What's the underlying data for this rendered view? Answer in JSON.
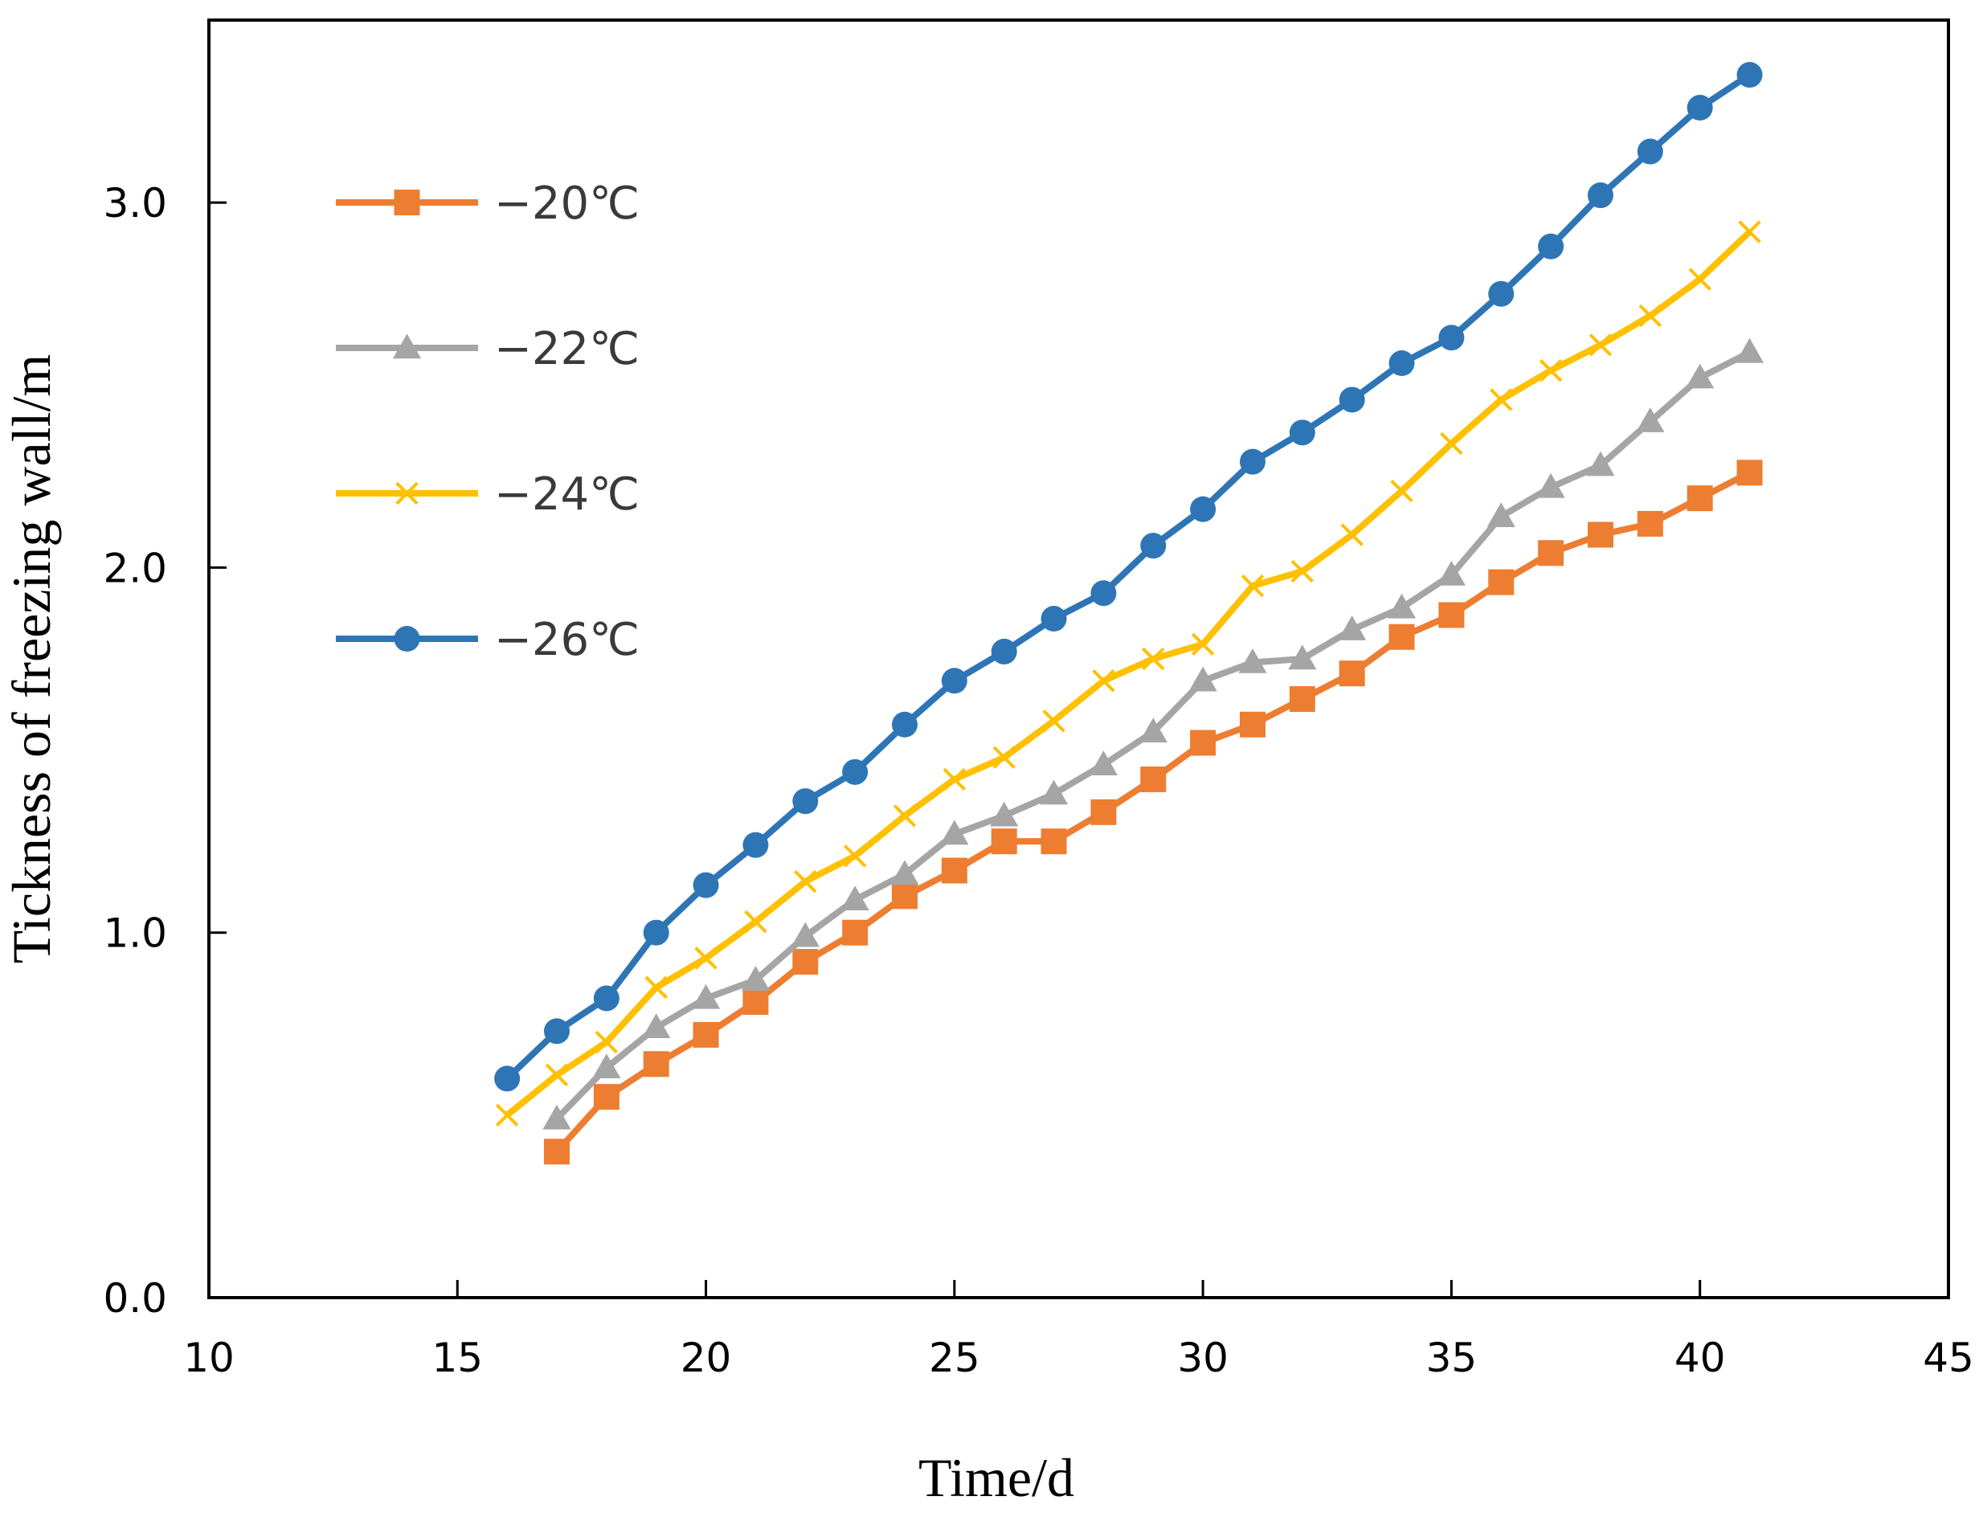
{
  "chart_data": {
    "type": "line",
    "title": "",
    "xlabel": "Time/d",
    "ylabel": "Tickness of freezing wall/m",
    "xlim": [
      10,
      45
    ],
    "ylim": [
      0,
      3.5
    ],
    "xticks": [
      10,
      15,
      20,
      25,
      30,
      35,
      40,
      45
    ],
    "yticks": [
      0.0,
      1.0,
      2.0,
      3.0
    ],
    "xtick_labels": [
      "10",
      "15",
      "20",
      "25",
      "30",
      "35",
      "40",
      "45"
    ],
    "ytick_labels": [
      "0.0",
      "1.0",
      "2.0",
      "3.0"
    ],
    "grid": false,
    "legend_position": "top-left",
    "series": [
      {
        "name": "−20℃",
        "color": "#ED7D31",
        "marker": "square",
        "x": [
          17,
          18,
          19,
          20,
          21,
          22,
          23,
          24,
          25,
          26,
          27,
          28,
          29,
          30,
          31,
          32,
          33,
          34,
          35,
          36,
          37,
          38,
          39,
          40,
          41
        ],
        "values": [
          0.4,
          0.55,
          0.64,
          0.72,
          0.81,
          0.92,
          1.0,
          1.1,
          1.17,
          1.25,
          1.25,
          1.33,
          1.42,
          1.52,
          1.57,
          1.64,
          1.71,
          1.81,
          1.87,
          1.96,
          2.04,
          2.09,
          2.12,
          2.19,
          2.26
        ]
      },
      {
        "name": "−22℃",
        "color": "#A5A5A5",
        "marker": "triangle",
        "x": [
          17,
          18,
          19,
          20,
          21,
          22,
          23,
          24,
          25,
          26,
          27,
          28,
          29,
          30,
          31,
          32,
          33,
          34,
          35,
          36,
          37,
          38,
          39,
          40,
          41
        ],
        "values": [
          0.49,
          0.63,
          0.74,
          0.82,
          0.87,
          0.99,
          1.09,
          1.16,
          1.27,
          1.32,
          1.38,
          1.46,
          1.55,
          1.69,
          1.74,
          1.75,
          1.83,
          1.89,
          1.98,
          2.14,
          2.22,
          2.28,
          2.4,
          2.52,
          2.59
        ]
      },
      {
        "name": "−24℃",
        "color": "#FFC000",
        "marker": "x",
        "x": [
          16,
          17,
          18,
          19,
          20,
          21,
          22,
          23,
          24,
          25,
          26,
          27,
          28,
          29,
          30,
          31,
          32,
          33,
          34,
          35,
          36,
          37,
          38,
          39,
          40,
          41
        ],
        "values": [
          0.5,
          0.61,
          0.7,
          0.85,
          0.93,
          1.03,
          1.14,
          1.21,
          1.32,
          1.42,
          1.48,
          1.58,
          1.69,
          1.75,
          1.79,
          1.95,
          1.99,
          2.09,
          2.21,
          2.34,
          2.46,
          2.54,
          2.61,
          2.69,
          2.79,
          2.92
        ]
      },
      {
        "name": "−26℃",
        "color": "#2E75B6",
        "marker": "circle",
        "x": [
          16,
          17,
          18,
          19,
          20,
          21,
          22,
          23,
          24,
          25,
          26,
          27,
          28,
          29,
          30,
          31,
          32,
          33,
          34,
          35,
          36,
          37,
          38,
          39,
          40,
          41
        ],
        "values": [
          0.6,
          0.73,
          0.82,
          1.0,
          1.13,
          1.24,
          1.36,
          1.44,
          1.57,
          1.69,
          1.77,
          1.86,
          1.93,
          2.06,
          2.16,
          2.29,
          2.37,
          2.46,
          2.56,
          2.63,
          2.75,
          2.88,
          3.02,
          3.14,
          3.26,
          3.35
        ]
      }
    ]
  }
}
